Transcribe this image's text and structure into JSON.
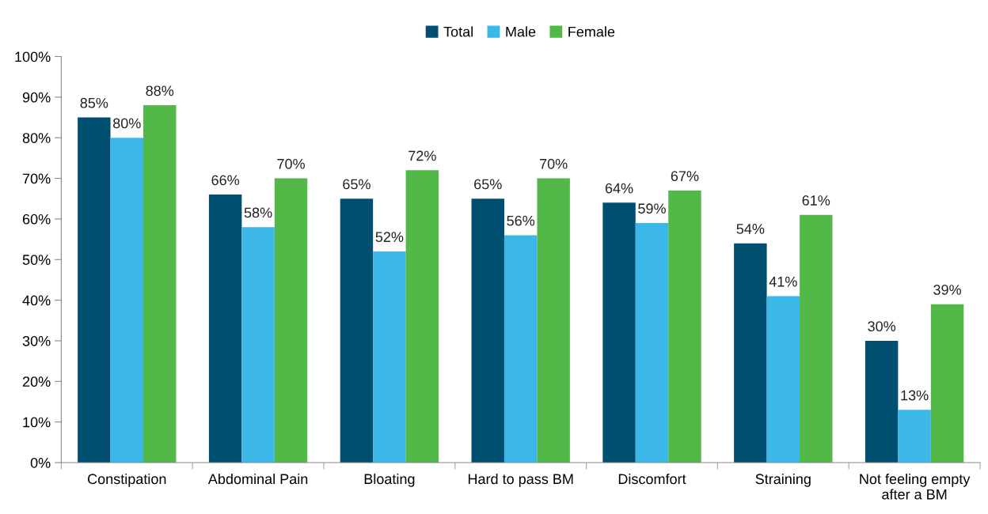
{
  "chart_data": {
    "type": "bar",
    "categories": [
      "Constipation",
      "Abdominal Pain",
      "Bloating",
      "Hard to pass BM",
      "Discomfort",
      "Straining",
      "Not feeling empty\nafter a BM"
    ],
    "series": [
      {
        "name": "Total",
        "color": "#004f71",
        "values": [
          85,
          66,
          65,
          65,
          64,
          54,
          30
        ],
        "value_labels": [
          "85%",
          "66%",
          "65%",
          "65%",
          "64%",
          "54%",
          "30%"
        ]
      },
      {
        "name": "Male",
        "color": "#3bb8e8",
        "values": [
          80,
          58,
          52,
          56,
          59,
          41,
          13
        ],
        "value_labels": [
          "80%",
          "58%",
          "52%",
          "56%",
          "59%",
          "41%",
          "13%"
        ]
      },
      {
        "name": "Female",
        "color": "#52b848",
        "values": [
          88,
          70,
          72,
          70,
          67,
          61,
          39
        ],
        "value_labels": [
          "88%",
          "70%",
          "72%",
          "70%",
          "67%",
          "61%",
          "39%"
        ]
      }
    ],
    "ylim": [
      0,
      100
    ],
    "yticks": [
      {
        "value": 0,
        "label": "0%"
      },
      {
        "value": 10,
        "label": "10%"
      },
      {
        "value": 20,
        "label": "20%"
      },
      {
        "value": 30,
        "label": "30%"
      },
      {
        "value": 40,
        "label": "40%"
      },
      {
        "value": 50,
        "label": "50%"
      },
      {
        "value": 60,
        "label": "60%"
      },
      {
        "value": 70,
        "label": "70%"
      },
      {
        "value": 80,
        "label": "80%"
      },
      {
        "value": 90,
        "label": "90%"
      },
      {
        "value": 100,
        "label": "100%"
      }
    ],
    "grid": false,
    "legend": "top"
  }
}
